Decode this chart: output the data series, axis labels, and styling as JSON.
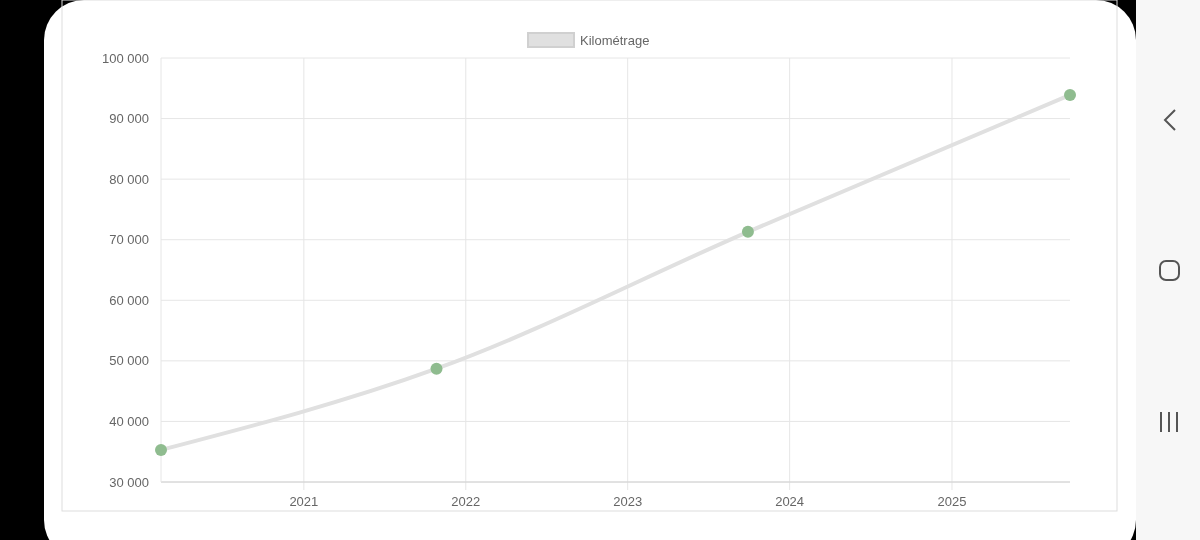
{
  "chart_data": {
    "type": "line",
    "x": [
      "2020-02-14",
      "2021-10-27",
      "2023-09-29",
      "2025-09-24"
    ],
    "series": [
      {
        "name": "Kilométrage",
        "color": "#e0e0e0",
        "values": [
          35300,
          48700,
          71300,
          93900
        ],
        "colors": [
          "#8fbc8f",
          "#8fbc8f",
          "#8fbc8f",
          "#8fbc8f"
        ]
      }
    ],
    "marker": "circle",
    "xlim": [
      "2020-02-14",
      "2025-09-24"
    ],
    "xticks": [
      "2021",
      "2022",
      "2023",
      "2024",
      "2025"
    ],
    "ylim": [
      30000,
      100000
    ],
    "yticks": [
      {
        "value": 30000,
        "label": "30 000"
      },
      {
        "value": 40000,
        "label": "40 000"
      },
      {
        "value": 50000,
        "label": "50 000"
      },
      {
        "value": 60000,
        "label": "60 000"
      },
      {
        "value": 70000,
        "label": "70 000"
      },
      {
        "value": 80000,
        "label": "80 000"
      },
      {
        "value": 90000,
        "label": "90 000"
      },
      {
        "value": 100000,
        "label": "100 000"
      }
    ],
    "grid": true,
    "legend": "top"
  }
}
